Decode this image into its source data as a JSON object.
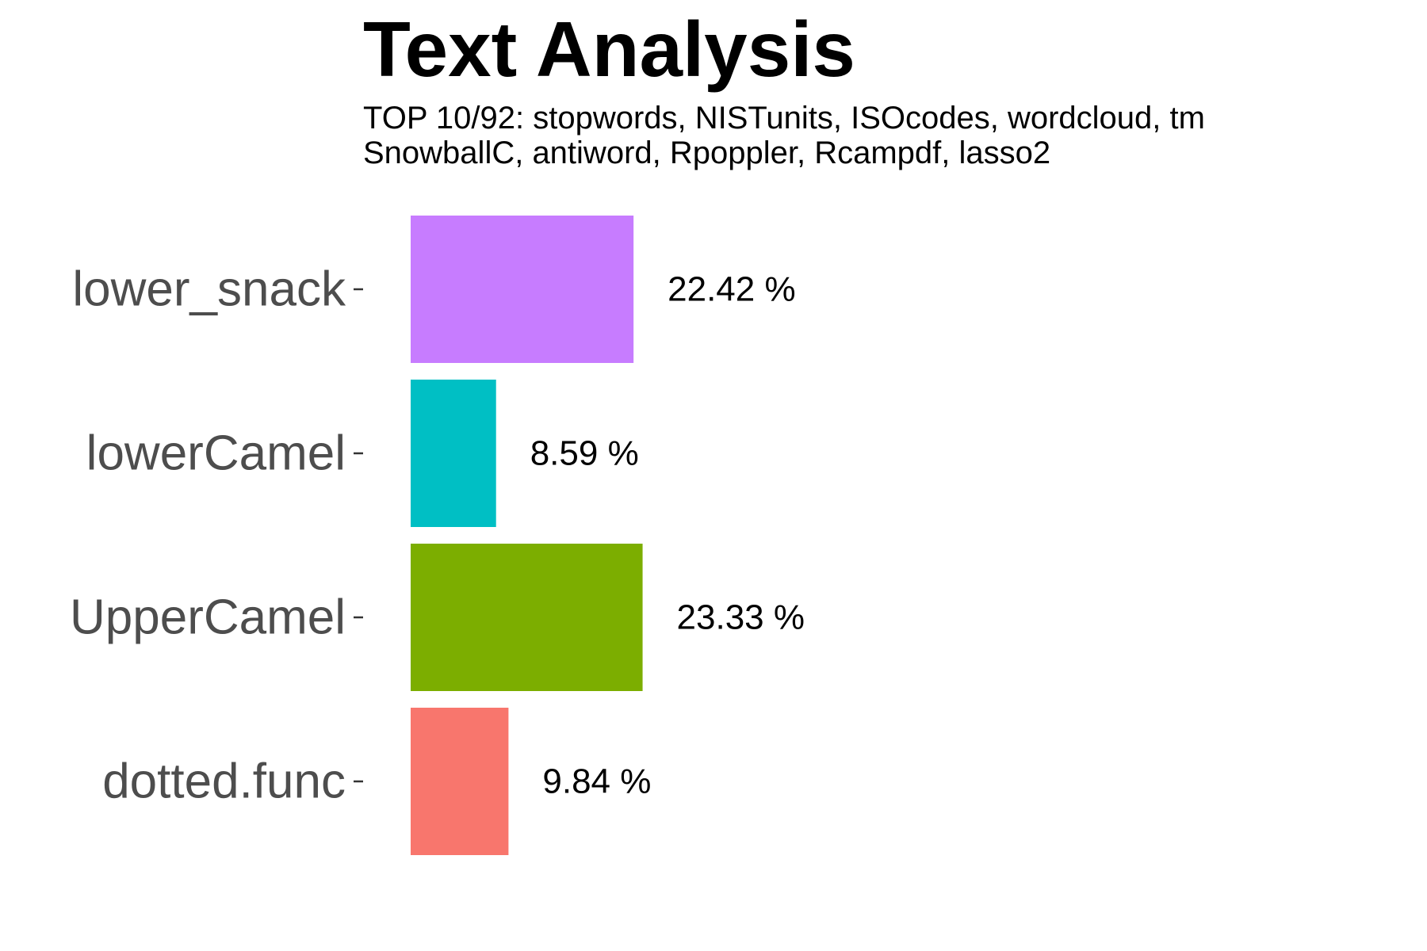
{
  "chart_data": {
    "type": "bar",
    "orientation": "horizontal",
    "title": "Text Analysis",
    "subtitle_lines": [
      "TOP 10/92: stopwords, NISTunits, ISOcodes, wordcloud, tm",
      "SnowballC, antiword, Rpoppler, Rcampdf, lasso2"
    ],
    "xlabel": "",
    "ylabel": "",
    "categories": [
      "lower_snack",
      "lowerCamel",
      "UpperCamel",
      "dotted.func"
    ],
    "values": [
      22.42,
      8.59,
      23.33,
      9.84
    ],
    "value_labels": [
      "22.42 %",
      "8.59 %",
      "23.33 %",
      "9.84 %"
    ],
    "colors": [
      "#C77CFF",
      "#00BFC4",
      "#7CAE00",
      "#F8766D"
    ],
    "xlim": [
      0,
      100
    ],
    "grid": false,
    "legend": "none"
  }
}
